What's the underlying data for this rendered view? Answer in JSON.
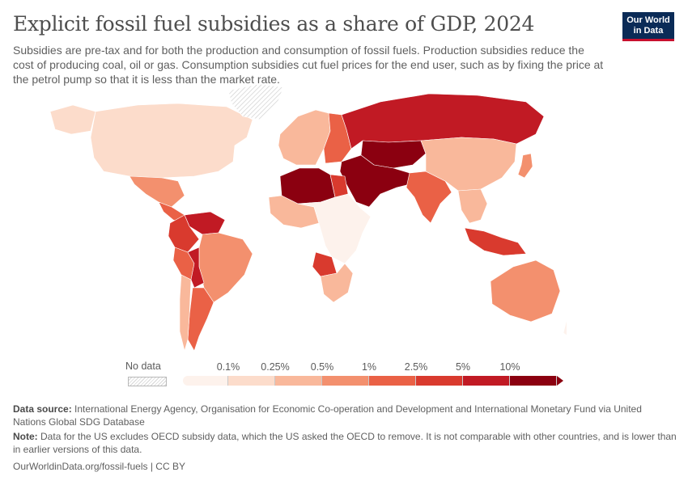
{
  "header": {
    "title": "Explicit fossil fuel subsidies as a share of GDP, 2024",
    "subtitle": "Subsidies are pre-tax and for both the production and consumption of fossil fuels. Production subsidies reduce the cost of producing coal, oil or gas. Consumption subsidies cut fuel prices for the end user, such as by fixing the price at the petrol pump so that it is less than the market rate."
  },
  "logo": {
    "line1": "Our World",
    "line2": "in Data"
  },
  "legend": {
    "no_data_label": "No data",
    "ticks": [
      "0.1%",
      "0.25%",
      "0.5%",
      "1%",
      "2.5%",
      "5%",
      "10%"
    ],
    "colors": [
      "#fdf2ec",
      "#fcdccb",
      "#f9b89b",
      "#f3906e",
      "#ea6146",
      "#d93a2e",
      "#c11a24",
      "#8b0010"
    ]
  },
  "map": {
    "regions": [
      {
        "name": "North America (US, Canada)",
        "level": 1
      },
      {
        "name": "Greenland",
        "level": -1
      },
      {
        "name": "Alaska",
        "level": 1
      },
      {
        "name": "Mexico",
        "level": 3
      },
      {
        "name": "Central America",
        "level": 4
      },
      {
        "name": "Venezuela",
        "level": 6
      },
      {
        "name": "Colombia & Ecuador",
        "level": 5
      },
      {
        "name": "Brazil",
        "level": 3
      },
      {
        "name": "Bolivia",
        "level": 6
      },
      {
        "name": "Peru",
        "level": 4
      },
      {
        "name": "Argentina",
        "level": 4
      },
      {
        "name": "Chile",
        "level": 2
      },
      {
        "name": "Western Europe",
        "level": 2
      },
      {
        "name": "Eastern Europe",
        "level": 4
      },
      {
        "name": "Russia",
        "level": 6
      },
      {
        "name": "Central Asia",
        "level": 7
      },
      {
        "name": "Iran & Middle East",
        "level": 7
      },
      {
        "name": "North Africa (Algeria, Libya)",
        "level": 7
      },
      {
        "name": "Egypt",
        "level": 5
      },
      {
        "name": "West Africa",
        "level": 2
      },
      {
        "name": "Central & East Africa",
        "level": 0
      },
      {
        "name": "Angola",
        "level": 5
      },
      {
        "name": "Southern Africa",
        "level": 2
      },
      {
        "name": "Pakistan & India",
        "level": 4
      },
      {
        "name": "China",
        "level": 2
      },
      {
        "name": "Japan",
        "level": 3
      },
      {
        "name": "Southeast Asia",
        "level": 2
      },
      {
        "name": "Indonesia & Malaysia",
        "level": 5
      },
      {
        "name": "Australia",
        "level": 3
      },
      {
        "name": "New Zealand",
        "level": 0
      }
    ]
  },
  "footer": {
    "source_label": "Data source:",
    "source_text": "International Energy Agency, Organisation for Economic Co-operation and Development and International Monetary Fund via United Nations Global SDG Database",
    "note_label": "Note:",
    "note_text": "Data for the US excludes OECD subsidy data, which the US asked the OECD to remove. It is not comparable with other countries, and is lower than in earlier versions of this data.",
    "credit": "OurWorldinData.org/fossil-fuels | CC BY"
  }
}
